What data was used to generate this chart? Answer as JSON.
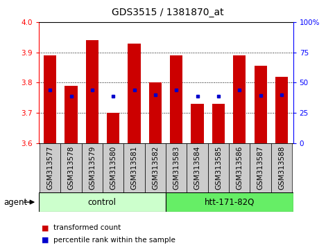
{
  "title": "GDS3515 / 1381870_at",
  "samples": [
    "GSM313577",
    "GSM313578",
    "GSM313579",
    "GSM313580",
    "GSM313581",
    "GSM313582",
    "GSM313583",
    "GSM313584",
    "GSM313585",
    "GSM313586",
    "GSM313587",
    "GSM313588"
  ],
  "bar_values": [
    3.89,
    3.79,
    3.94,
    3.7,
    3.93,
    3.8,
    3.89,
    3.73,
    3.73,
    3.89,
    3.855,
    3.82
  ],
  "percentile_values": [
    3.775,
    3.755,
    3.775,
    3.755,
    3.775,
    3.76,
    3.775,
    3.755,
    3.755,
    3.775,
    3.758,
    3.76
  ],
  "y_min": 3.6,
  "y_max": 4.0,
  "y_ticks": [
    3.6,
    3.7,
    3.8,
    3.9,
    4.0
  ],
  "right_y_ticks_pct": [
    0,
    25,
    50,
    75,
    100
  ],
  "right_y_labels": [
    "0",
    "25",
    "50",
    "75",
    "100%"
  ],
  "bar_color": "#cc0000",
  "dot_color": "#0000cc",
  "group1_label": "control",
  "group2_label": "htt-171-82Q",
  "group1_count": 6,
  "group2_count": 6,
  "group1_color": "#ccffcc",
  "group2_color": "#66ee66",
  "legend_bar_label": "transformed count",
  "legend_dot_label": "percentile rank within the sample",
  "agent_label": "agent",
  "bar_width": 0.6,
  "xticklabel_bg_color": "#cccccc",
  "grid_color": "#000000",
  "title_fontsize": 10,
  "tick_fontsize": 7.5,
  "label_fontsize": 8.5,
  "legend_fontsize": 7.5
}
